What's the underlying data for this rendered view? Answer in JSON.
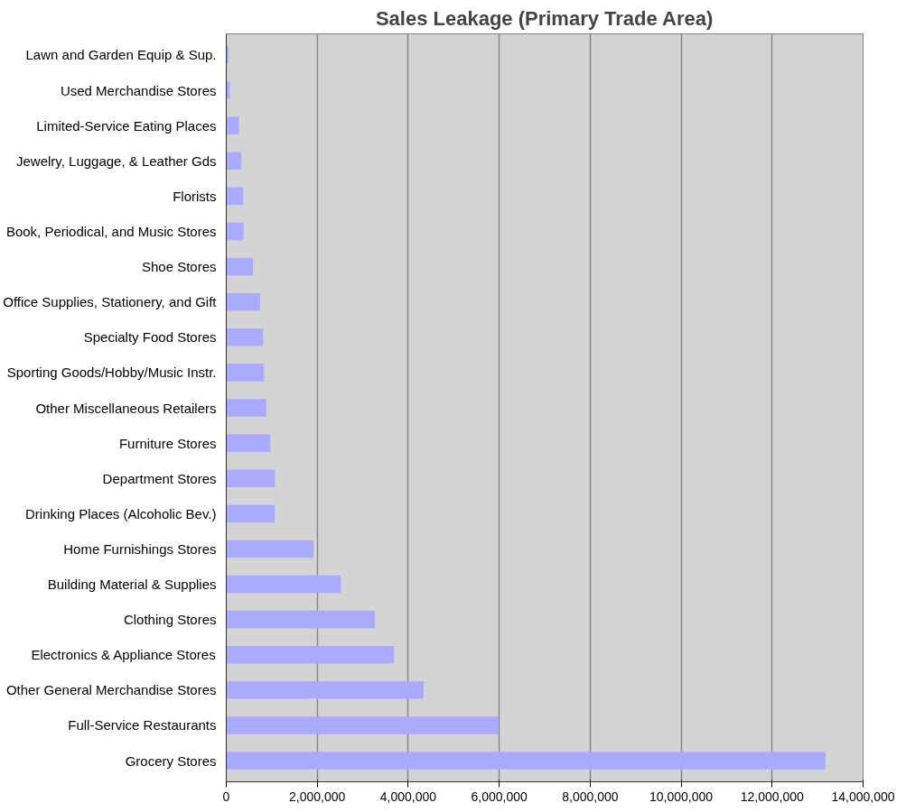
{
  "chart_data": {
    "type": "bar",
    "orientation": "horizontal",
    "title": "Sales Leakage (Primary Trade Area)",
    "categories": [
      "Lawn and Garden Equip & Sup.",
      "Used Merchandise Stores",
      "Limited-Service Eating Places",
      "Jewelry, Luggage, & Leather Gds",
      "Florists",
      "Book, Periodical, and Music Stores",
      "Shoe Stores",
      "Office Supplies, Stationery, and Gift",
      "Specialty Food Stores",
      "Sporting Goods/Hobby/Music Instr.",
      "Other Miscellaneous Retailers",
      "Furniture Stores",
      "Department Stores",
      "Drinking Places (Alcoholic Bev.)",
      "Home Furnishings Stores",
      "Building Material & Supplies",
      "Clothing Stores",
      "Electronics & Appliance Stores",
      "Other General Merchandise Stores",
      "Full-Service Restaurants",
      "Grocery Stores"
    ],
    "values": [
      50000,
      80000,
      280000,
      330000,
      370000,
      380000,
      590000,
      740000,
      810000,
      830000,
      880000,
      970000,
      1070000,
      1070000,
      1920000,
      2520000,
      3270000,
      3690000,
      4340000,
      5990000,
      13170000
    ],
    "color": "#aaaaff",
    "xlim": [
      0,
      14000000
    ],
    "xticks": [
      {
        "value": 0,
        "label": "0"
      },
      {
        "value": 2000000,
        "label": "2,000,000"
      },
      {
        "value": 4000000,
        "label": "4,000,000"
      },
      {
        "value": 6000000,
        "label": "6,000,000"
      },
      {
        "value": 8000000,
        "label": "8,000,000"
      },
      {
        "value": 10000000,
        "label": "10,000,000"
      },
      {
        "value": 12000000,
        "label": "12,000,000"
      },
      {
        "value": 14000000,
        "label": "14,000,000"
      }
    ],
    "grid": "x"
  }
}
